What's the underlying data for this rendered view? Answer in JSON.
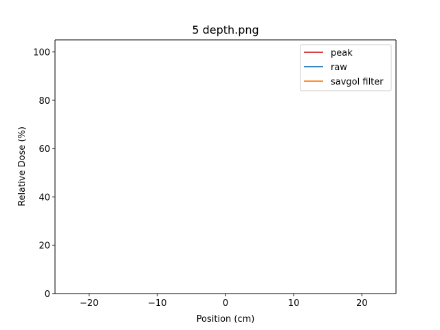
{
  "chart_data": {
    "type": "line",
    "title": "5 depth.png",
    "xlabel": "Position (cm)",
    "ylabel": "Relative Dose (%)",
    "xlim": [
      -25,
      25
    ],
    "ylim": [
      0,
      105
    ],
    "xticks": [
      -20,
      -10,
      0,
      10,
      20
    ],
    "xtick_labels": [
      "−20",
      "−10",
      "0",
      "10",
      "20"
    ],
    "yticks": [
      0,
      20,
      40,
      60,
      80,
      100
    ],
    "ytick_labels": [
      "0",
      "20",
      "40",
      "60",
      "80",
      "100"
    ],
    "grid": false,
    "legend_position": "top-right",
    "series": [
      {
        "name": "peak",
        "color": "#d62728",
        "x": [],
        "y": []
      },
      {
        "name": "raw",
        "color": "#1f77b4",
        "x": [],
        "y": []
      },
      {
        "name": "savgol filter",
        "color": "#ff7f0e",
        "x": [],
        "y": []
      }
    ]
  }
}
